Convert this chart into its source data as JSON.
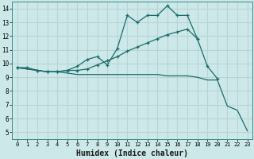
{
  "xlabel": "Humidex (Indice chaleur)",
  "background_color": "#cce8e8",
  "grid_color": "#b8d4d4",
  "line_color": "#1a6b6b",
  "xlim": [
    -0.5,
    23.5
  ],
  "ylim": [
    4.5,
    14.5
  ],
  "xticks": [
    0,
    1,
    2,
    3,
    4,
    5,
    6,
    7,
    8,
    9,
    10,
    11,
    12,
    13,
    14,
    15,
    16,
    17,
    18,
    19,
    20,
    21,
    22,
    23
  ],
  "yticks": [
    5,
    6,
    7,
    8,
    9,
    10,
    11,
    12,
    13,
    14
  ],
  "line1_x": [
    0,
    1,
    2,
    3,
    4,
    5,
    6,
    7,
    8,
    9,
    10,
    11,
    12,
    13,
    14,
    15,
    16,
    17,
    18
  ],
  "line1_y": [
    9.7,
    9.7,
    9.5,
    9.4,
    9.4,
    9.5,
    9.8,
    10.3,
    10.5,
    9.9,
    11.1,
    13.5,
    13.0,
    13.5,
    13.5,
    14.2,
    13.5,
    13.5,
    11.8
  ],
  "line2_x": [
    0,
    2,
    3,
    4,
    5,
    6,
    7,
    8,
    9,
    10,
    11,
    12,
    13,
    14,
    15,
    16,
    17,
    18,
    19,
    20
  ],
  "line2_y": [
    9.7,
    9.5,
    9.4,
    9.4,
    9.5,
    9.5,
    9.6,
    9.9,
    10.2,
    10.5,
    10.9,
    11.2,
    11.5,
    11.8,
    12.1,
    12.3,
    12.5,
    11.8,
    9.8,
    8.9
  ],
  "line3_x": [
    0,
    2,
    3,
    4,
    5,
    6,
    7,
    8,
    9,
    10,
    11,
    12,
    13,
    14,
    15,
    16,
    17,
    18,
    19,
    20,
    21,
    22,
    23
  ],
  "line3_y": [
    9.7,
    9.5,
    9.4,
    9.4,
    9.3,
    9.2,
    9.2,
    9.2,
    9.2,
    9.2,
    9.2,
    9.2,
    9.2,
    9.2,
    9.1,
    9.1,
    9.1,
    9.0,
    8.8,
    8.8,
    6.9,
    6.6,
    5.1
  ]
}
